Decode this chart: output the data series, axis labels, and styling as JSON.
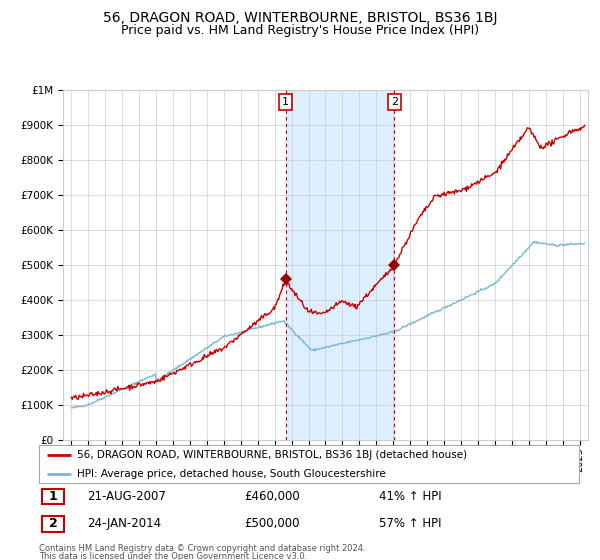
{
  "title": "56, DRAGON ROAD, WINTERBOURNE, BRISTOL, BS36 1BJ",
  "subtitle": "Price paid vs. HM Land Registry's House Price Index (HPI)",
  "legend_line1": "56, DRAGON ROAD, WINTERBOURNE, BRISTOL, BS36 1BJ (detached house)",
  "legend_line2": "HPI: Average price, detached house, South Gloucestershire",
  "footnote1": "Contains HM Land Registry data © Crown copyright and database right 2024.",
  "footnote2": "This data is licensed under the Open Government Licence v3.0.",
  "transaction1_date": "21-AUG-2007",
  "transaction1_price": 460000,
  "transaction1_hpi": "41% ↑ HPI",
  "transaction2_date": "24-JAN-2014",
  "transaction2_price": 500000,
  "transaction2_hpi": "57% ↑ HPI",
  "transaction1_x": 2007.64,
  "transaction2_x": 2014.07,
  "shading_start": 2007.64,
  "shading_end": 2014.07,
  "hpi_color": "#7ab6d9",
  "price_color": "#cc0000",
  "marker_color": "#990000",
  "shading_color": "#ddeeff",
  "grid_color": "#cccccc",
  "background_color": "#ffffff",
  "ylim": [
    0,
    1000000
  ],
  "xlim_start": 1994.5,
  "xlim_end": 2025.5,
  "title_fontsize": 10,
  "subtitle_fontsize": 9
}
